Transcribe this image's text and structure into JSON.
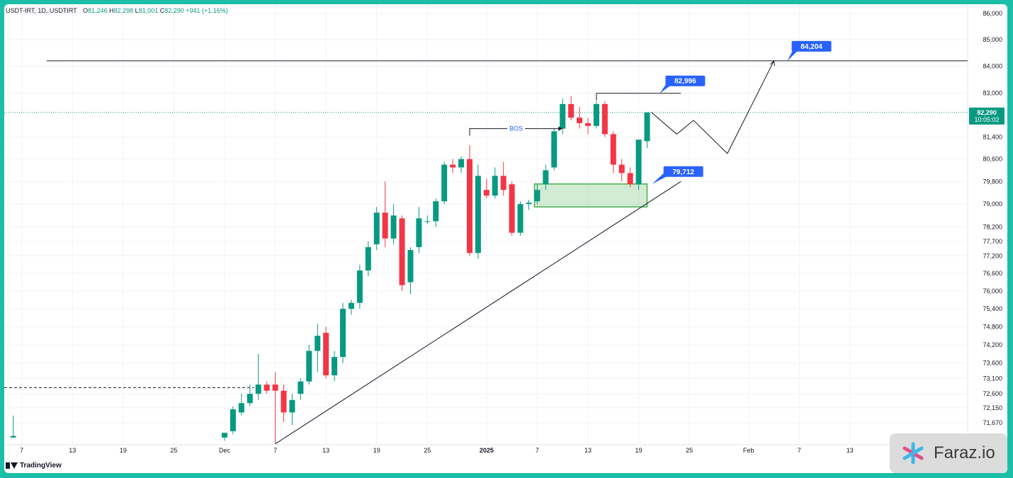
{
  "header": {
    "symbol": "USDT-IRT, 1D, USDTIRT",
    "open_label": "O",
    "open": "81,246",
    "high_label": "H",
    "high": "82,298",
    "low_label": "L",
    "low": "81,001",
    "close_label": "C",
    "close": "82,290",
    "change": "+941 (+1.16%)"
  },
  "footer": {
    "tradingview_label": "TradingView"
  },
  "watermark": {
    "brand": "Faraz.io"
  },
  "colors": {
    "up": "#089981",
    "down": "#f23645",
    "zone": "#4caf50",
    "label": "#2962ff",
    "frame": "#1bbfa8"
  },
  "chart_data": {
    "type": "candlestick",
    "y_axis": {
      "ticks": [
        "86,000",
        "85,000",
        "84,000",
        "83,000",
        "81,400",
        "80,600",
        "79,800",
        "79,000",
        "78,200",
        "77,700",
        "77,200",
        "76,600",
        "76,000",
        "75,400",
        "74,800",
        "74,200",
        "73,600",
        "73,100",
        "72,600",
        "72,150",
        "71,670"
      ],
      "scale": "log"
    },
    "x_axis": {
      "ticks": [
        {
          "label": "7",
          "day": -24
        },
        {
          "label": "13",
          "day": -18
        },
        {
          "label": "19",
          "day": -12
        },
        {
          "label": "25",
          "day": -6
        },
        {
          "label": "Dec",
          "day": 0
        },
        {
          "label": "7",
          "day": 6
        },
        {
          "label": "13",
          "day": 12
        },
        {
          "label": "19",
          "day": 18
        },
        {
          "label": "25",
          "day": 24
        },
        {
          "label": "2025",
          "day": 31
        },
        {
          "label": "7",
          "day": 37
        },
        {
          "label": "13",
          "day": 43
        },
        {
          "label": "19",
          "day": 49
        },
        {
          "label": "25",
          "day": 55
        },
        {
          "label": "Feb",
          "day": 62
        },
        {
          "label": "7",
          "day": 68
        },
        {
          "label": "13",
          "day": 74
        }
      ]
    },
    "candles": [
      {
        "day": -25,
        "o": 71200,
        "h": 71900,
        "l": 71200,
        "c": 71250
      },
      {
        "day": 0,
        "o": 71200,
        "h": 71350,
        "l": 71100,
        "c": 71350
      },
      {
        "day": 1,
        "o": 71400,
        "h": 72200,
        "l": 71300,
        "c": 72100
      },
      {
        "day": 2,
        "o": 72000,
        "h": 72600,
        "l": 71900,
        "c": 72300
      },
      {
        "day": 3,
        "o": 72300,
        "h": 72900,
        "l": 72200,
        "c": 72600
      },
      {
        "day": 4,
        "o": 72600,
        "h": 73900,
        "l": 72400,
        "c": 72900
      },
      {
        "day": 5,
        "o": 72900,
        "h": 73000,
        "l": 72600,
        "c": 72700
      },
      {
        "day": 6,
        "o": 72900,
        "h": 73300,
        "l": 71000,
        "c": 72700
      },
      {
        "day": 7,
        "o": 72700,
        "h": 72900,
        "l": 71700,
        "c": 72000
      },
      {
        "day": 8,
        "o": 72000,
        "h": 72600,
        "l": 71600,
        "c": 72400
      },
      {
        "day": 9,
        "o": 72600,
        "h": 73100,
        "l": 72400,
        "c": 73000
      },
      {
        "day": 10,
        "o": 73000,
        "h": 74200,
        "l": 72900,
        "c": 74000
      },
      {
        "day": 11,
        "o": 74000,
        "h": 74900,
        "l": 73300,
        "c": 74500
      },
      {
        "day": 12,
        "o": 74600,
        "h": 74800,
        "l": 73100,
        "c": 73200
      },
      {
        "day": 13,
        "o": 73200,
        "h": 74000,
        "l": 73000,
        "c": 73800
      },
      {
        "day": 14,
        "o": 73800,
        "h": 75600,
        "l": 73600,
        "c": 75400
      },
      {
        "day": 15,
        "o": 75400,
        "h": 75700,
        "l": 75200,
        "c": 75600
      },
      {
        "day": 16,
        "o": 75600,
        "h": 76900,
        "l": 75400,
        "c": 76700
      },
      {
        "day": 17,
        "o": 76700,
        "h": 77700,
        "l": 76500,
        "c": 77500
      },
      {
        "day": 18,
        "o": 77600,
        "h": 78900,
        "l": 77400,
        "c": 78700
      },
      {
        "day": 19,
        "o": 78700,
        "h": 79800,
        "l": 77500,
        "c": 77800
      },
      {
        "day": 20,
        "o": 77800,
        "h": 79000,
        "l": 77600,
        "c": 78600
      },
      {
        "day": 21,
        "o": 78500,
        "h": 78600,
        "l": 76000,
        "c": 76200
      },
      {
        "day": 22,
        "o": 76300,
        "h": 77500,
        "l": 75900,
        "c": 77400
      },
      {
        "day": 23,
        "o": 77500,
        "h": 78900,
        "l": 77300,
        "c": 78500
      },
      {
        "day": 24,
        "o": 78400,
        "h": 78600,
        "l": 78300,
        "c": 78400
      },
      {
        "day": 25,
        "o": 78400,
        "h": 79200,
        "l": 78200,
        "c": 79100
      },
      {
        "day": 26,
        "o": 79100,
        "h": 80500,
        "l": 79000,
        "c": 80400
      },
      {
        "day": 27,
        "o": 80400,
        "h": 80600,
        "l": 80100,
        "c": 80300
      },
      {
        "day": 28,
        "o": 80300,
        "h": 80700,
        "l": 80100,
        "c": 80600
      },
      {
        "day": 29,
        "o": 80600,
        "h": 81100,
        "l": 77200,
        "c": 77300
      },
      {
        "day": 30,
        "o": 77300,
        "h": 80400,
        "l": 77100,
        "c": 80000
      },
      {
        "day": 31,
        "o": 79500,
        "h": 79900,
        "l": 79200,
        "c": 79300
      },
      {
        "day": 32,
        "o": 79300,
        "h": 80300,
        "l": 79200,
        "c": 80000
      },
      {
        "day": 33,
        "o": 80000,
        "h": 80500,
        "l": 79300,
        "c": 79500
      },
      {
        "day": 34,
        "o": 79700,
        "h": 79800,
        "l": 77900,
        "c": 78000
      },
      {
        "day": 35,
        "o": 78000,
        "h": 79100,
        "l": 77900,
        "c": 79000
      },
      {
        "day": 36,
        "o": 79000,
        "h": 79150,
        "l": 78800,
        "c": 79050
      },
      {
        "day": 37,
        "o": 79100,
        "h": 79700,
        "l": 79000,
        "c": 79500
      },
      {
        "day": 38,
        "o": 79700,
        "h": 80400,
        "l": 79500,
        "c": 80200
      },
      {
        "day": 39,
        "o": 80300,
        "h": 81700,
        "l": 80200,
        "c": 81600
      },
      {
        "day": 40,
        "o": 81700,
        "h": 82800,
        "l": 81500,
        "c": 82600
      },
      {
        "day": 41,
        "o": 82600,
        "h": 82900,
        "l": 82000,
        "c": 82100
      },
      {
        "day": 42,
        "o": 82100,
        "h": 82500,
        "l": 81700,
        "c": 81900
      },
      {
        "day": 43,
        "o": 81900,
        "h": 82100,
        "l": 81500,
        "c": 81800
      },
      {
        "day": 44,
        "o": 81800,
        "h": 82700,
        "l": 81700,
        "c": 82600
      },
      {
        "day": 45,
        "o": 82600,
        "h": 82700,
        "l": 81400,
        "c": 81500
      },
      {
        "day": 46,
        "o": 81500,
        "h": 81600,
        "l": 80100,
        "c": 80400
      },
      {
        "day": 47,
        "o": 80400,
        "h": 80600,
        "l": 79800,
        "c": 80100
      },
      {
        "day": 48,
        "o": 80100,
        "h": 80300,
        "l": 79600,
        "c": 79700
      },
      {
        "day": 49,
        "o": 79700,
        "h": 81200,
        "l": 79500,
        "c": 81300
      },
      {
        "day": 50,
        "o": 81246,
        "h": 82298,
        "l": 81001,
        "c": 82290
      }
    ],
    "price_labels": [
      {
        "value": "84,204",
        "price": 84204
      },
      {
        "value": "82,996",
        "price": 82996
      },
      {
        "value": "79,712",
        "price": 79712
      }
    ],
    "current_price": {
      "value": "82,290",
      "countdown": "10:05:02"
    },
    "annotations": [
      {
        "text": "BOS"
      }
    ],
    "resistance_line": 84204,
    "support_level_left": 72800,
    "demand_zone": {
      "from_day": 37,
      "to_day": 50,
      "top": 79712,
      "bottom": 78900
    },
    "projection_path": [
      {
        "day": 50.5,
        "p": 82300
      },
      {
        "day": 53.5,
        "p": 81500
      },
      {
        "day": 55.5,
        "p": 82000
      },
      {
        "day": 59.5,
        "p": 80800
      },
      {
        "day": 65,
        "p": 84204
      }
    ],
    "trendline": {
      "from": {
        "day": 6,
        "p": 71000
      },
      "to": {
        "day": 54,
        "p": 79800
      }
    },
    "bos_line": {
      "from_day": 29,
      "to_day": 40,
      "p": 81700
    },
    "level_82996": {
      "from_day": 44,
      "to_day": 54,
      "p": 82996
    }
  }
}
